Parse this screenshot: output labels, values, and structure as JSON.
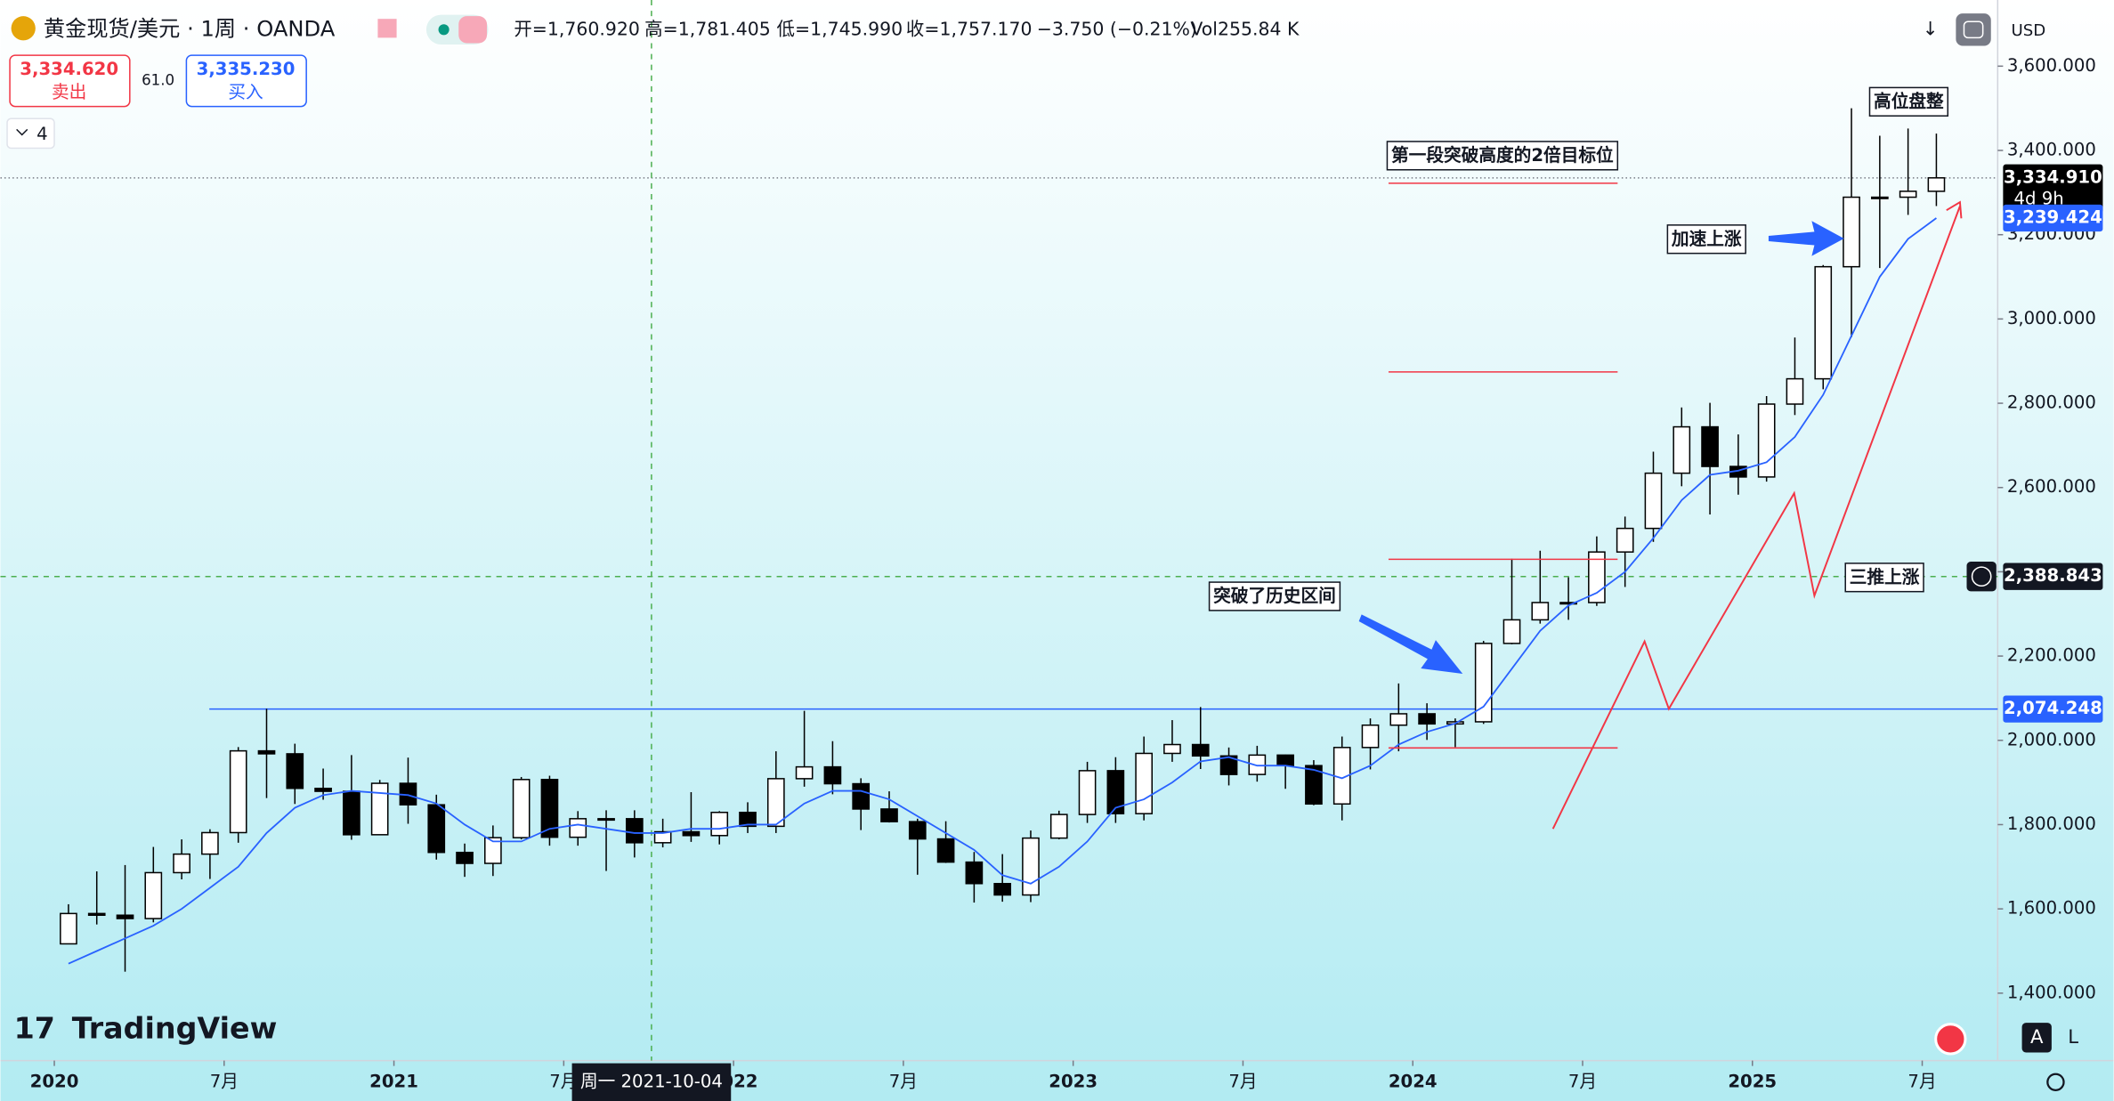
{
  "header": {
    "symbol": "黄金现货/美元 · 1周 · OANDA",
    "ohlc_text": [
      "开=1,760.920",
      "高=1,781.405",
      "低=1,745.990",
      "收=1,757.170",
      "−3.750 (−0.21%)",
      "Vol255.84 K"
    ],
    "sell_price": "3,334.620",
    "sell_label": "卖出",
    "spread": "61.0",
    "buy_price": "3,335.230",
    "buy_label": "买入",
    "indicator_count": "4",
    "currency": "USD",
    "logo": "TradingView",
    "crosshair_date": "周一 2021-10-04",
    "btn_a": "A",
    "btn_l": "L"
  },
  "chart_data": {
    "type": "candlestick",
    "categories": [
      "2020-01",
      "2020-02",
      "2020-03",
      "2020-04",
      "2020-05",
      "2020-06",
      "2020-07",
      "2020-08",
      "2020-09",
      "2020-10",
      "2020-11",
      "2020-12",
      "2021-01",
      "2021-02",
      "2021-03",
      "2021-04",
      "2021-05",
      "2021-06",
      "2021-07",
      "2021-08",
      "2021-09",
      "2021-10",
      "2021-11",
      "2021-12",
      "2022-01",
      "2022-02",
      "2022-03",
      "2022-04",
      "2022-05",
      "2022-06",
      "2022-07",
      "2022-08",
      "2022-09",
      "2022-10",
      "2022-11",
      "2022-12",
      "2023-01",
      "2023-02",
      "2023-03",
      "2023-04",
      "2023-05",
      "2023-06",
      "2023-07",
      "2023-08",
      "2023-09",
      "2023-10",
      "2023-11",
      "2023-12",
      "2024-01",
      "2024-02",
      "2024-03",
      "2024-04",
      "2024-05",
      "2024-06",
      "2024-07",
      "2024-08",
      "2024-09",
      "2024-10",
      "2024-11",
      "2024-12",
      "2025-01",
      "2025-02",
      "2025-03",
      "2025-04",
      "2025-05",
      "2025-06",
      "2025-07"
    ],
    "ohlc": [
      [
        1517,
        1611,
        1517,
        1589
      ],
      [
        1589,
        1689,
        1563,
        1585
      ],
      [
        1585,
        1704,
        1451,
        1577
      ],
      [
        1577,
        1747,
        1568,
        1686
      ],
      [
        1686,
        1765,
        1670,
        1730
      ],
      [
        1730,
        1789,
        1671,
        1781
      ],
      [
        1781,
        1984,
        1757,
        1975
      ],
      [
        1975,
        2075,
        1863,
        1968
      ],
      [
        1968,
        1992,
        1849,
        1886
      ],
      [
        1886,
        1933,
        1859,
        1879
      ],
      [
        1879,
        1965,
        1764,
        1776
      ],
      [
        1776,
        1906,
        1775,
        1898
      ],
      [
        1898,
        1959,
        1802,
        1847
      ],
      [
        1847,
        1871,
        1717,
        1734
      ],
      [
        1734,
        1755,
        1676,
        1708
      ],
      [
        1708,
        1798,
        1678,
        1769
      ],
      [
        1769,
        1913,
        1765,
        1907
      ],
      [
        1907,
        1916,
        1750,
        1770
      ],
      [
        1770,
        1832,
        1750,
        1814
      ],
      [
        1814,
        1834,
        1690,
        1814
      ],
      [
        1814,
        1834,
        1722,
        1757
      ],
      [
        1757,
        1814,
        1746,
        1783
      ],
      [
        1783,
        1877,
        1759,
        1774
      ],
      [
        1774,
        1832,
        1753,
        1829
      ],
      [
        1829,
        1853,
        1780,
        1796
      ],
      [
        1796,
        1974,
        1780,
        1909
      ],
      [
        1909,
        2070,
        1890,
        1937
      ],
      [
        1937,
        1998,
        1872,
        1897
      ],
      [
        1897,
        1910,
        1787,
        1837
      ],
      [
        1837,
        1879,
        1805,
        1807
      ],
      [
        1807,
        1814,
        1681,
        1766
      ],
      [
        1766,
        1808,
        1709,
        1711
      ],
      [
        1711,
        1735,
        1615,
        1660
      ],
      [
        1660,
        1730,
        1617,
        1633
      ],
      [
        1633,
        1786,
        1616,
        1768
      ],
      [
        1768,
        1833,
        1765,
        1824
      ],
      [
        1824,
        1949,
        1804,
        1928
      ],
      [
        1928,
        1960,
        1804,
        1826
      ],
      [
        1826,
        2009,
        1810,
        1969
      ],
      [
        1969,
        2048,
        1949,
        1990
      ],
      [
        1990,
        2079,
        1932,
        1963
      ],
      [
        1963,
        1983,
        1893,
        1919
      ],
      [
        1919,
        1987,
        1902,
        1965
      ],
      [
        1965,
        1966,
        1885,
        1940
      ],
      [
        1940,
        1953,
        1846,
        1849
      ],
      [
        1849,
        2009,
        1810,
        1983
      ],
      [
        1983,
        2052,
        1931,
        2036
      ],
      [
        2036,
        2135,
        1974,
        2063
      ],
      [
        2063,
        2088,
        2001,
        2039
      ],
      [
        2039,
        2052,
        1984,
        2044
      ],
      [
        2044,
        2236,
        2039,
        2230
      ],
      [
        2230,
        2431,
        2228,
        2286
      ],
      [
        2286,
        2450,
        2277,
        2327
      ],
      [
        2327,
        2387,
        2286,
        2327
      ],
      [
        2327,
        2484,
        2319,
        2447
      ],
      [
        2447,
        2531,
        2364,
        2503
      ],
      [
        2503,
        2685,
        2471,
        2634
      ],
      [
        2634,
        2790,
        2603,
        2744
      ],
      [
        2744,
        2801,
        2536,
        2650
      ],
      [
        2650,
        2726,
        2583,
        2625
      ],
      [
        2625,
        2817,
        2614,
        2798
      ],
      [
        2798,
        2956,
        2772,
        2858
      ],
      [
        2858,
        3128,
        2833,
        3124
      ],
      [
        3124,
        3500,
        2957,
        3289
      ],
      [
        3289,
        3435,
        3121,
        3289
      ],
      [
        3289,
        3452,
        3247,
        3303
      ],
      [
        3303,
        3440,
        3268,
        3334.91
      ]
    ],
    "up_color": "#ffffff",
    "down_color": "#000000",
    "wick_color": "#000000",
    "ma": {
      "color": "#2962ff",
      "values": [
        1470,
        1500,
        1530,
        1560,
        1600,
        1650,
        1700,
        1780,
        1840,
        1870,
        1880,
        1875,
        1870,
        1850,
        1800,
        1760,
        1760,
        1790,
        1800,
        1790,
        1780,
        1780,
        1790,
        1790,
        1800,
        1800,
        1850,
        1880,
        1880,
        1860,
        1820,
        1780,
        1740,
        1680,
        1660,
        1700,
        1760,
        1840,
        1860,
        1900,
        1950,
        1960,
        1940,
        1940,
        1930,
        1910,
        1940,
        1990,
        2020,
        2040,
        2080,
        2170,
        2260,
        2320,
        2350,
        2400,
        2480,
        2570,
        2630,
        2640,
        2660,
        2720,
        2820,
        2960,
        3100,
        3190,
        3239.424
      ]
    },
    "ylim": [
      1240,
      3757
    ],
    "yticks": [
      {
        "value": 1400,
        "label": "1,400.000"
      },
      {
        "value": 1600,
        "label": "1,600.000"
      },
      {
        "value": 1800,
        "label": "1,800.000"
      },
      {
        "value": 2000,
        "label": "2,000.000"
      },
      {
        "value": 2200,
        "label": "2,200.000"
      },
      {
        "value": 2400,
        "label": "2,400.000"
      },
      {
        "value": 2600,
        "label": "2,600.000"
      },
      {
        "value": 2800,
        "label": "2,800.000"
      },
      {
        "value": 3000,
        "label": "3,000.000"
      },
      {
        "value": 3200,
        "label": "3,200.000"
      },
      {
        "value": 3400,
        "label": "3,400.000"
      },
      {
        "value": 3600,
        "label": "3,600.000"
      }
    ],
    "xticks": [
      {
        "value": "2020-01",
        "label": "2020"
      },
      {
        "value": "2020-07",
        "label": "7月"
      },
      {
        "value": "2021-01",
        "label": "2021"
      },
      {
        "value": "2021-07",
        "label": "7月"
      },
      {
        "value": "2022-01",
        "label": "2022"
      },
      {
        "value": "2022-07",
        "label": "7月"
      },
      {
        "value": "2023-01",
        "label": "2023"
      },
      {
        "value": "2023-07",
        "label": "7月"
      },
      {
        "value": "2024-01",
        "label": "2024"
      },
      {
        "value": "2024-07",
        "label": "7月"
      },
      {
        "value": "2025-01",
        "label": "2025"
      },
      {
        "value": "2025-07",
        "label": "7月"
      }
    ],
    "price_tags": [
      {
        "value": 3334.91,
        "label": "3,334.910",
        "sub": "4d 9h",
        "color": "#000000",
        "line": "dotted"
      },
      {
        "value": 3239.424,
        "label": "3,239.424",
        "color": "#2962ff"
      },
      {
        "value": 2388.843,
        "label": "2,388.843",
        "color": "#131722",
        "line": "dashed"
      },
      {
        "value": 2074.248,
        "label": "2,074.248",
        "color": "#2962ff",
        "line": "solid"
      }
    ],
    "annotations": [
      "第一段突破高度的2倍目标位",
      "高位盘整",
      "加速上涨",
      "三推上涨",
      "突破了历史区间"
    ]
  }
}
